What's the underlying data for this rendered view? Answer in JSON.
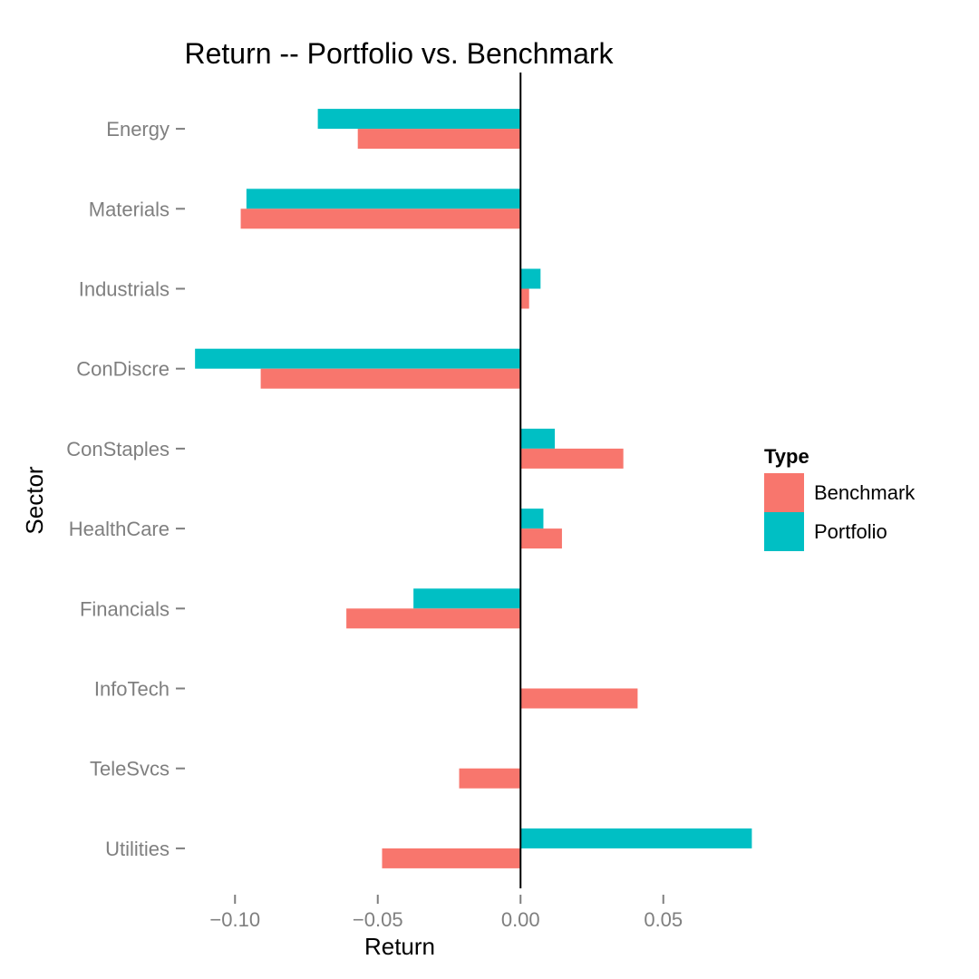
{
  "chart_data": {
    "type": "bar",
    "orientation": "horizontal",
    "title": "Return -- Portfolio vs. Benchmark",
    "xlabel": "Return",
    "ylabel": "Sector",
    "categories": [
      "Energy",
      "Materials",
      "Industrials",
      "ConDiscre",
      "ConStaples",
      "HealthCare",
      "Financials",
      "InfoTech",
      "TeleSvcs",
      "Utilities"
    ],
    "series": [
      {
        "name": "Benchmark",
        "color": "#F8766D",
        "values": [
          -0.057,
          -0.098,
          0.003,
          -0.091,
          0.036,
          0.0145,
          -0.061,
          0.041,
          -0.0215,
          -0.0485
        ]
      },
      {
        "name": "Portfolio",
        "color": "#00BFC4",
        "values": [
          -0.071,
          -0.096,
          0.007,
          -0.114,
          0.012,
          0.008,
          -0.0375,
          0,
          0,
          0.081
        ]
      }
    ],
    "xlim": [
      -0.115,
      0.085
    ],
    "xticks": [
      -0.1,
      -0.05,
      0.0,
      0.05
    ],
    "xtick_labels": [
      "−0.10",
      "−0.05",
      "0.00",
      "0.05"
    ],
    "zero_line": true,
    "grid": false,
    "legend": {
      "title": "Type",
      "position": "right"
    }
  }
}
